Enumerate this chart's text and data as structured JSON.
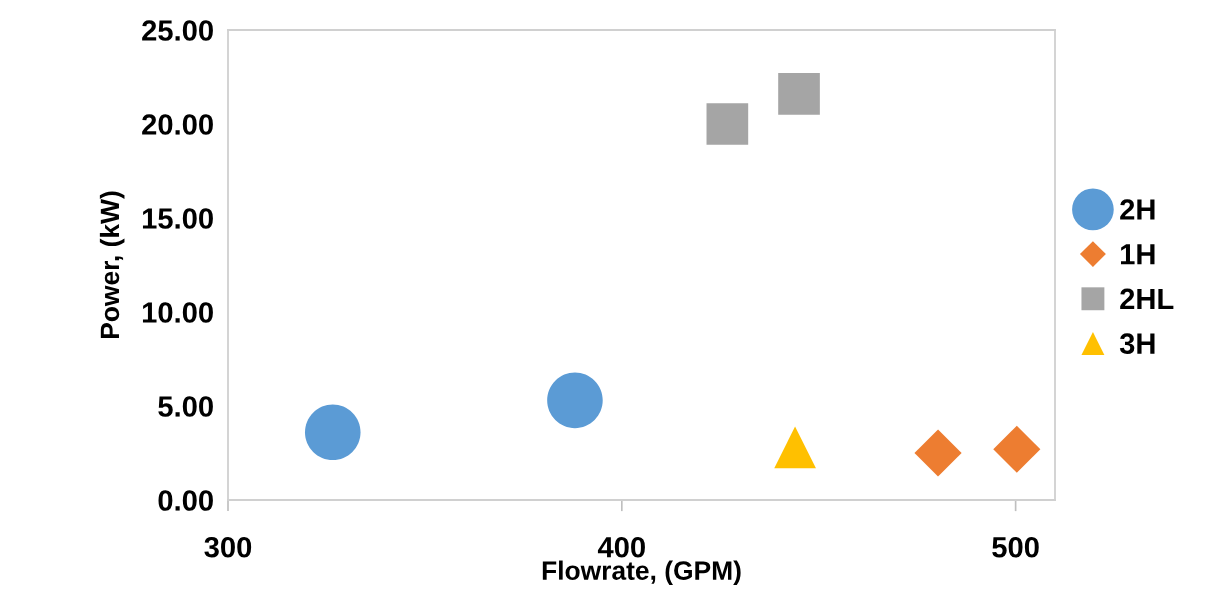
{
  "chart_data": {
    "type": "scatter",
    "xlabel": "Flowrate, (GPM)",
    "ylabel": "Power, (kW)",
    "xlim": [
      300,
      510
    ],
    "xticks": [
      300,
      400,
      500
    ],
    "ylim": [
      0,
      25
    ],
    "yticks": [
      {
        "value": 0,
        "label": "0.00"
      },
      {
        "value": 5,
        "label": "5.00"
      },
      {
        "value": 10,
        "label": "10.00"
      },
      {
        "value": 15,
        "label": "15.00"
      },
      {
        "value": 20,
        "label": "20.00"
      },
      {
        "value": 25,
        "label": "25.00"
      }
    ],
    "grid": false,
    "legend": "right",
    "series": [
      {
        "name": "2H",
        "color": "#5b9bd5",
        "marker": "circle",
        "x": [
          326.6,
          388.1
        ],
        "values": [
          3.6,
          5.3
        ]
      },
      {
        "name": "1H",
        "color": "#ed7d31",
        "marker": "diamond",
        "x": [
          480.3,
          500.3
        ],
        "values": [
          2.5,
          2.7
        ]
      },
      {
        "name": "2HL",
        "color": "#a5a5a5",
        "marker": "square",
        "x": [
          426.8,
          445
        ],
        "values": [
          20.0,
          21.6
        ]
      },
      {
        "name": "3H",
        "color": "#ffc000",
        "marker": "triangle",
        "x": [
          444
        ],
        "values": [
          2.8
        ]
      }
    ]
  }
}
